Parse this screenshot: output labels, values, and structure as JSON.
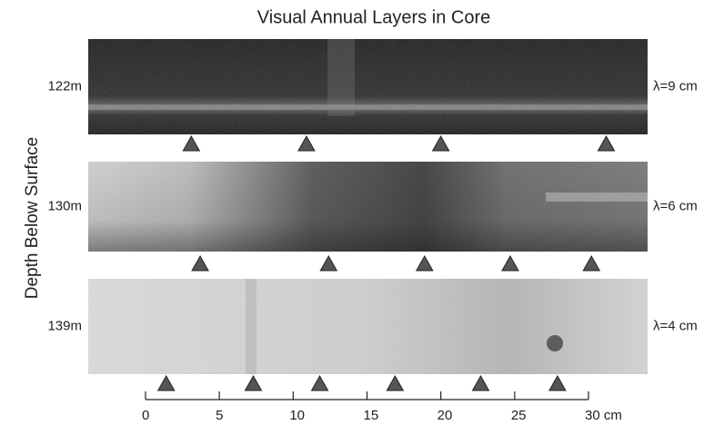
{
  "title": "Visual Annual Layers in Core",
  "y_axis_label": "Depth Below Surface",
  "cores": [
    {
      "depth": "122m",
      "wavelength": "λ=9 cm",
      "markers_cm": [
        3.1,
        10.9,
        20.0,
        31.2
      ]
    },
    {
      "depth": "130m",
      "wavelength": "λ=6 cm",
      "markers_cm": [
        3.7,
        12.4,
        18.9,
        24.7,
        30.2
      ]
    },
    {
      "depth": "139m",
      "wavelength": "λ=4 cm",
      "markers_cm": [
        1.4,
        7.3,
        11.8,
        16.9,
        22.7,
        27.9
      ]
    }
  ],
  "scale": {
    "lim": [
      0,
      30
    ],
    "ticks": [
      0,
      5,
      10,
      15,
      20,
      25,
      {
        "value": 30,
        "label": "30 cm"
      }
    ]
  }
}
